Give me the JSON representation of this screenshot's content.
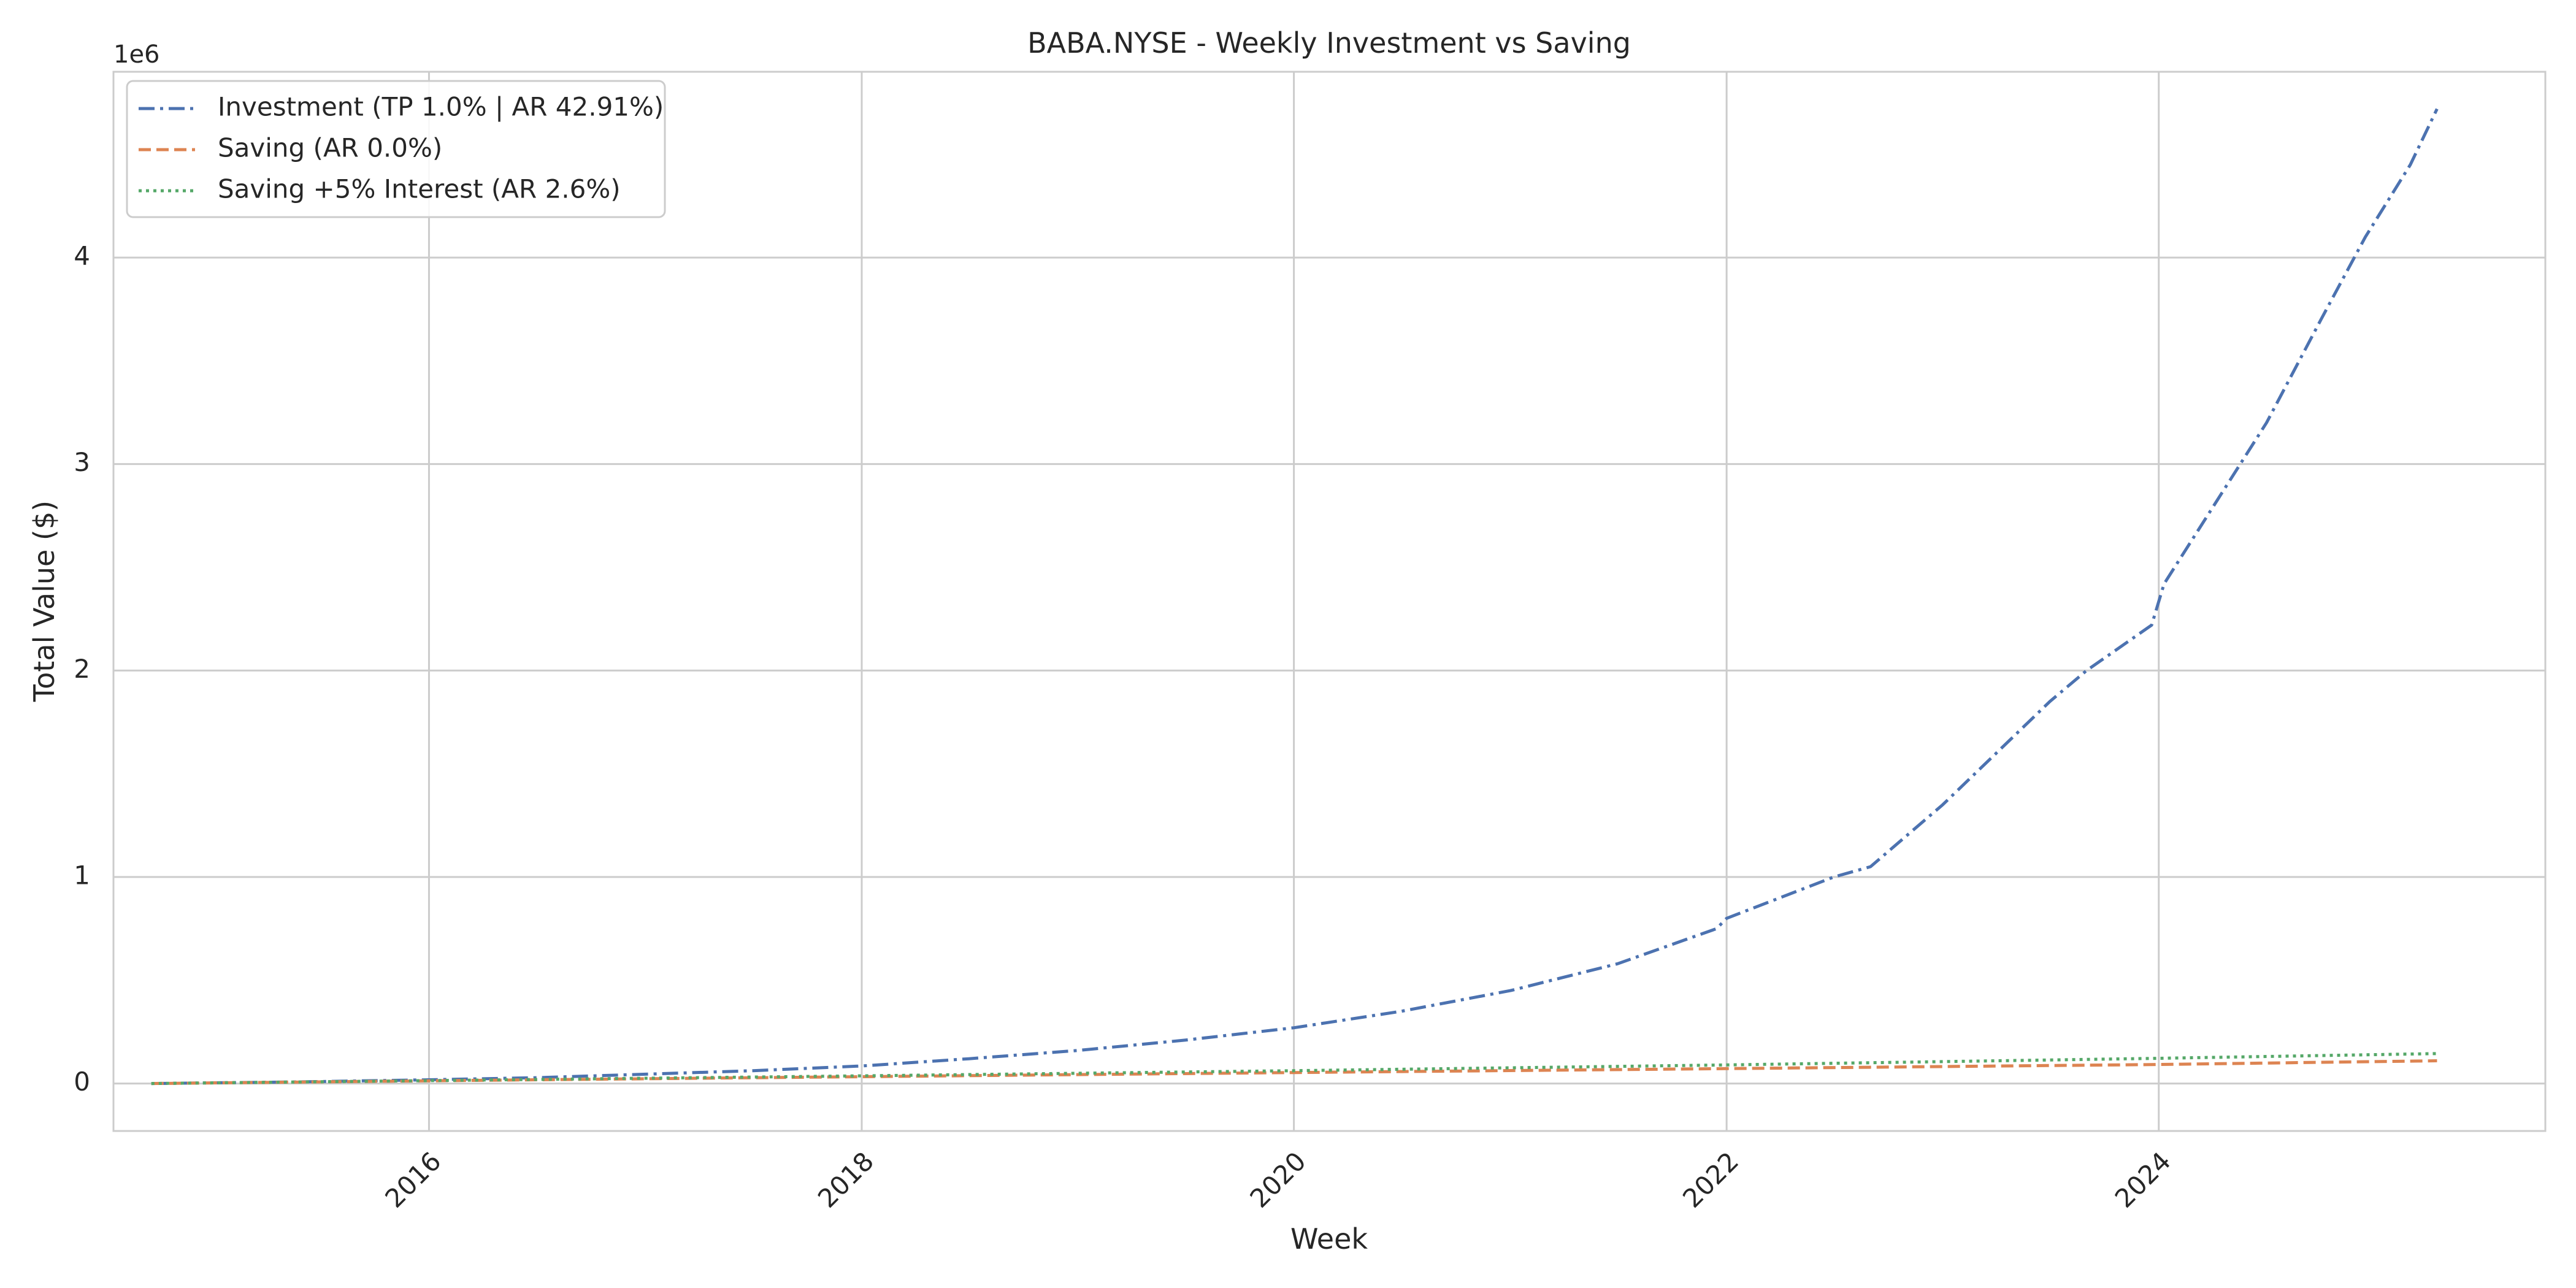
{
  "chart_data": {
    "type": "line",
    "title": "BABA.NYSE - Weekly Investment vs Saving",
    "xlabel": "Week",
    "ylabel": "Total Value ($)",
    "y_multiplier_label": "1e6",
    "xlim": [
      "2014-07-17",
      "2025-10-15"
    ],
    "ylim": [
      -230000,
      4900000
    ],
    "x_ticks": [
      {
        "date": "2016-01-01",
        "label": "2016"
      },
      {
        "date": "2018-01-01",
        "label": "2018"
      },
      {
        "date": "2020-01-01",
        "label": "2020"
      },
      {
        "date": "2022-01-01",
        "label": "2022"
      },
      {
        "date": "2024-01-01",
        "label": "2024"
      }
    ],
    "y_ticks": [
      {
        "value": 0,
        "label": "0"
      },
      {
        "value": 1000000,
        "label": "1"
      },
      {
        "value": 2000000,
        "label": "2"
      },
      {
        "value": 3000000,
        "label": "3"
      },
      {
        "value": 4000000,
        "label": "4"
      }
    ],
    "grid": true,
    "legend_position": "top-left",
    "series": [
      {
        "name": "Investment (TP 1.0% | AR 42.91%)",
        "color": "#4c72b0",
        "style": "dashdot",
        "points": [
          [
            "2014-09-19",
            0
          ],
          [
            "2015-06-01",
            8000
          ],
          [
            "2016-01-01",
            18000
          ],
          [
            "2016-07-01",
            28000
          ],
          [
            "2017-01-01",
            45000
          ],
          [
            "2017-07-01",
            62000
          ],
          [
            "2018-01-01",
            85000
          ],
          [
            "2018-07-01",
            120000
          ],
          [
            "2019-01-01",
            160000
          ],
          [
            "2019-07-01",
            210000
          ],
          [
            "2020-01-01",
            270000
          ],
          [
            "2020-07-01",
            350000
          ],
          [
            "2021-01-01",
            450000
          ],
          [
            "2021-07-01",
            580000
          ],
          [
            "2021-12-15",
            750000
          ],
          [
            "2022-01-01",
            800000
          ],
          [
            "2022-07-01",
            1000000
          ],
          [
            "2022-09-01",
            1050000
          ],
          [
            "2023-01-01",
            1350000
          ],
          [
            "2023-07-01",
            1850000
          ],
          [
            "2023-09-01",
            2000000
          ],
          [
            "2023-12-20",
            2220000
          ],
          [
            "2024-01-10",
            2420000
          ],
          [
            "2024-07-01",
            3200000
          ],
          [
            "2024-10-01",
            3700000
          ],
          [
            "2024-12-15",
            4100000
          ],
          [
            "2025-03-01",
            4450000
          ],
          [
            "2025-04-15",
            4720000
          ]
        ]
      },
      {
        "name": "Saving (AR 0.0%)",
        "color": "#dd8452",
        "style": "dashed",
        "points": [
          [
            "2014-09-19",
            0
          ],
          [
            "2016-01-01",
            13000
          ],
          [
            "2018-01-01",
            33000
          ],
          [
            "2020-01-01",
            53000
          ],
          [
            "2022-01-01",
            72000
          ],
          [
            "2024-01-01",
            92000
          ],
          [
            "2025-04-15",
            110000
          ]
        ]
      },
      {
        "name": "Saving +5% Interest (AR 2.6%)",
        "color": "#55a868",
        "style": "dotted",
        "points": [
          [
            "2014-09-19",
            0
          ],
          [
            "2016-01-01",
            14000
          ],
          [
            "2018-01-01",
            37000
          ],
          [
            "2020-01-01",
            62000
          ],
          [
            "2022-01-01",
            90000
          ],
          [
            "2024-01-01",
            122000
          ],
          [
            "2025-04-15",
            145000
          ]
        ]
      }
    ]
  }
}
